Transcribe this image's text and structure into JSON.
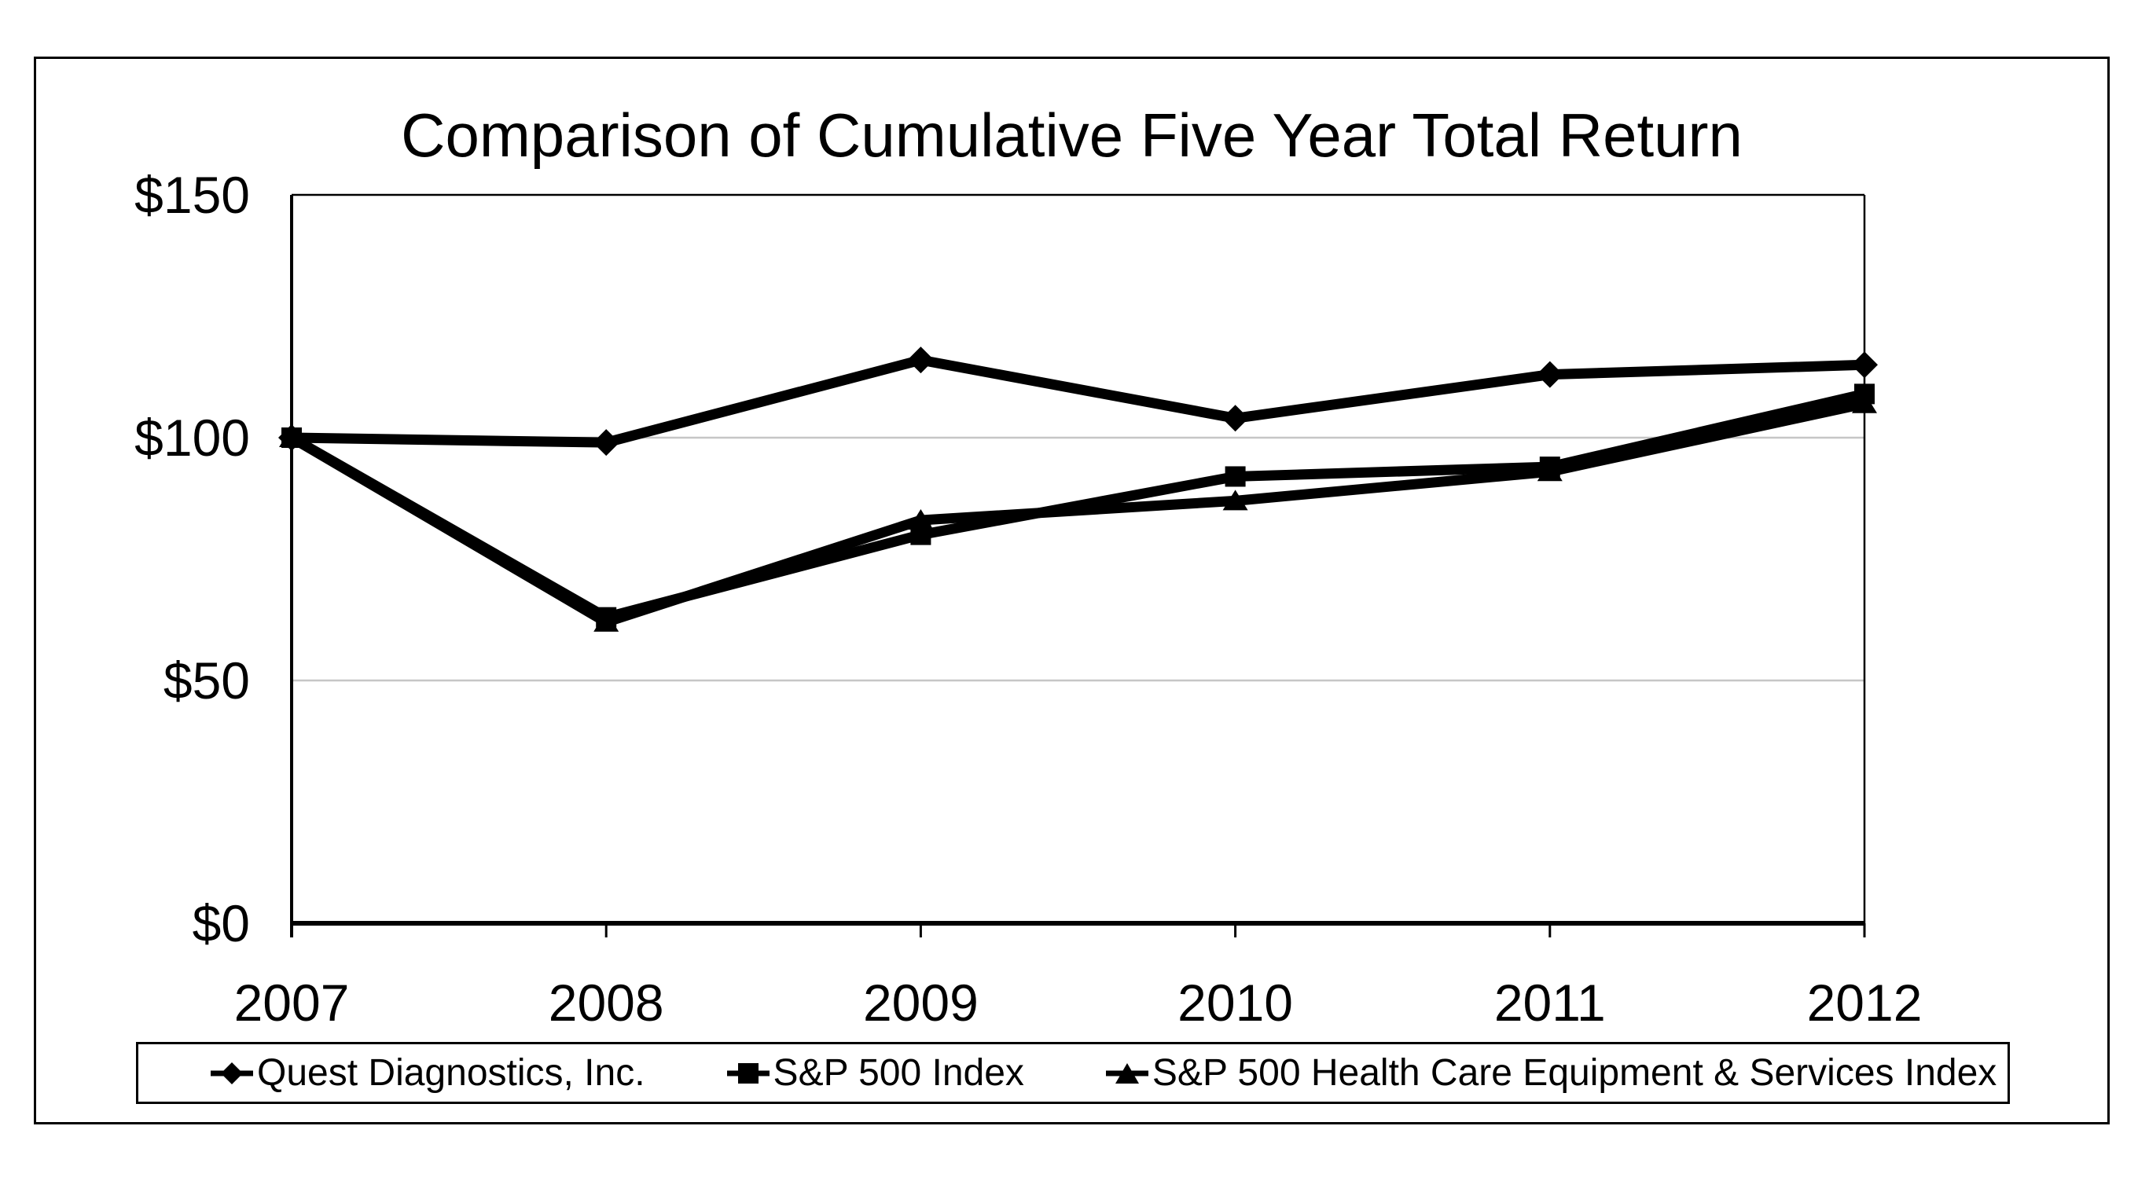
{
  "page": {
    "background": "#ffffff",
    "border_color": "#000000"
  },
  "chart_data": {
    "type": "line",
    "title": "Comparison of Cumulative Five Year Total Return",
    "x_categories": [
      "2007",
      "2008",
      "2009",
      "2010",
      "2011",
      "2012"
    ],
    "y_axis": {
      "ticks": [
        {
          "label": "$150",
          "value": 150
        },
        {
          "label": "$100",
          "value": 100
        },
        {
          "label": "$50",
          "value": 50
        },
        {
          "label": "$0",
          "value": 0
        }
      ],
      "range": [
        0,
        150
      ],
      "grid_values": [
        50,
        100
      ]
    },
    "series": [
      {
        "name": "Quest Diagnostics, Inc.",
        "marker": "diamond",
        "color": "#000000",
        "values": [
          100,
          99,
          116,
          104,
          113,
          115
        ]
      },
      {
        "name": "S&P 500 Index",
        "marker": "square",
        "color": "#000000",
        "values": [
          100,
          63,
          80,
          92,
          94,
          109
        ]
      },
      {
        "name": "S&P 500 Health Care Equipment & Services Index",
        "marker": "triangle",
        "color": "#000000",
        "values": [
          100,
          62,
          83,
          87,
          93,
          107
        ]
      }
    ],
    "legend_position": "bottom",
    "grid_color": "#c6c6c6",
    "axis_color": "#000000",
    "grid_on": true
  }
}
